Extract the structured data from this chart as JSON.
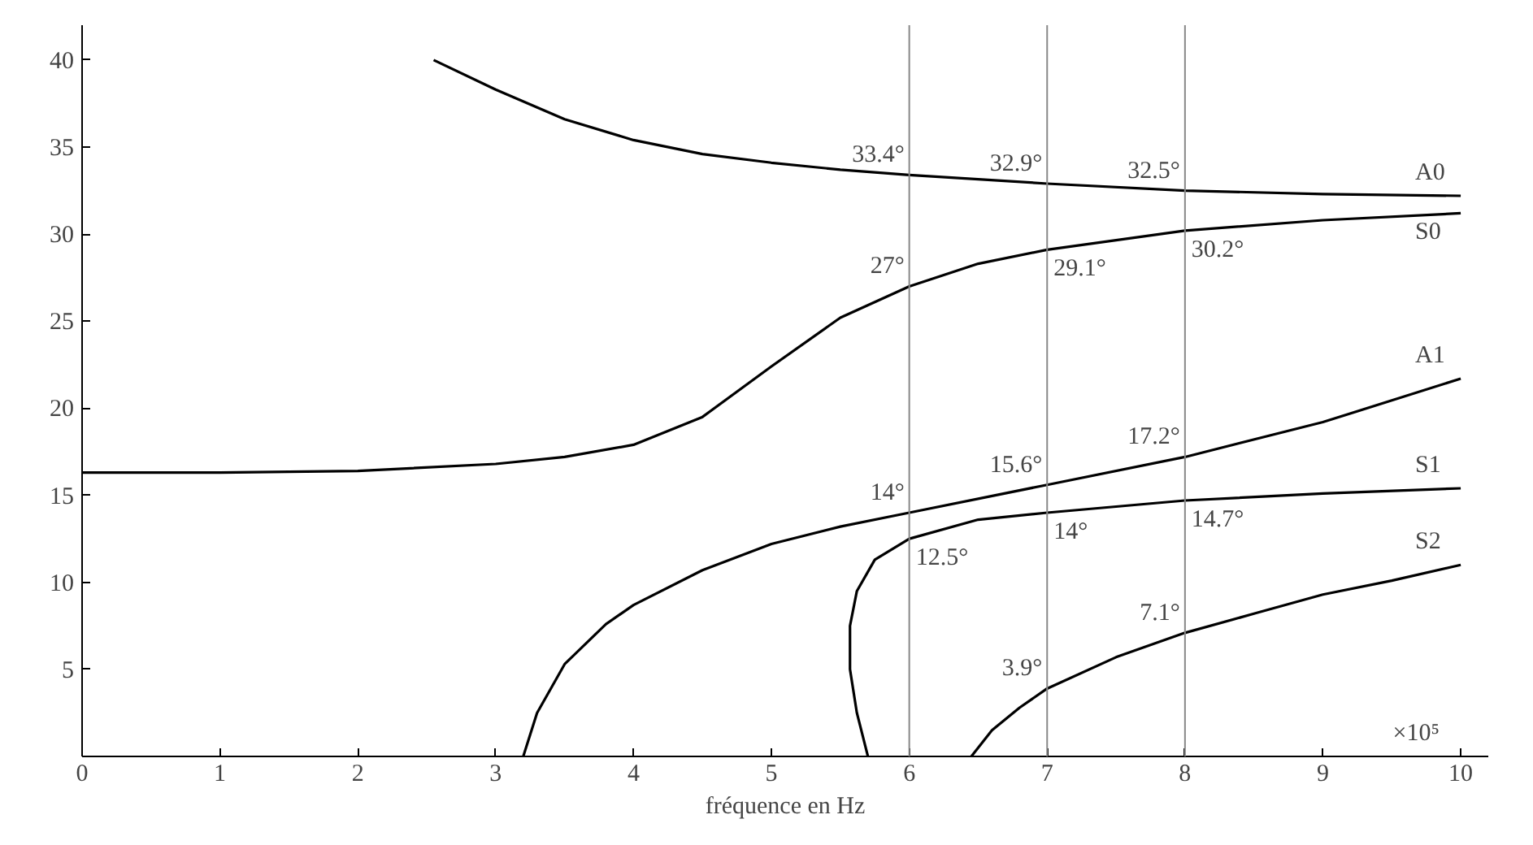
{
  "chart_data": {
    "type": "line",
    "xlabel": "fréquence en Hz",
    "xlim": [
      0,
      10.2
    ],
    "ylim": [
      0,
      42
    ],
    "xticks": [
      0,
      1,
      2,
      3,
      4,
      5,
      6,
      7,
      8,
      9,
      10
    ],
    "yticks": [
      5,
      10,
      15,
      20,
      25,
      30,
      35,
      40
    ],
    "grid": false,
    "marker": "none",
    "line_style": "solid",
    "series": [
      {
        "name": "A0",
        "color": "#000000",
        "x": [
          2.55,
          3,
          3.5,
          4,
          4.5,
          5,
          5.5,
          6,
          7,
          8,
          9,
          10
        ],
        "values": [
          40,
          38.3,
          36.6,
          35.4,
          34.6,
          34.1,
          33.7,
          33.4,
          32.9,
          32.5,
          32.3,
          32.2
        ]
      },
      {
        "name": "S0",
        "color": "#000000",
        "x": [
          0,
          1,
          2,
          3,
          3.5,
          4,
          4.5,
          5,
          5.5,
          6,
          6.5,
          7,
          8,
          9,
          10
        ],
        "values": [
          16.3,
          16.3,
          16.4,
          16.8,
          17.2,
          17.9,
          19.5,
          22.4,
          25.2,
          27,
          28.3,
          29.1,
          30.2,
          30.8,
          31.2
        ]
      },
      {
        "name": "A1",
        "color": "#000000",
        "x": [
          3.2,
          3.3,
          3.5,
          3.8,
          4,
          4.5,
          5,
          5.5,
          6,
          7,
          8,
          9,
          10
        ],
        "values": [
          0,
          2.5,
          5.3,
          7.6,
          8.7,
          10.7,
          12.2,
          13.2,
          14,
          15.6,
          17.2,
          19.2,
          21.7
        ]
      },
      {
        "name": "S1",
        "color": "#000000",
        "x": [
          5.7,
          5.62,
          5.57,
          5.57,
          5.62,
          5.75,
          6,
          6.5,
          7,
          8,
          9,
          10
        ],
        "values": [
          0,
          2.5,
          5,
          7.5,
          9.5,
          11.3,
          12.5,
          13.6,
          14,
          14.7,
          15.1,
          15.4
        ]
      },
      {
        "name": "S2",
        "color": "#000000",
        "x": [
          6.45,
          6.6,
          6.8,
          7,
          7.5,
          8,
          8.5,
          9,
          9.5,
          10
        ],
        "values": [
          0,
          1.5,
          2.8,
          3.9,
          5.7,
          7.1,
          8.2,
          9.3,
          10.1,
          11
        ]
      }
    ],
    "ref_lines": [
      {
        "axis": "x",
        "value": 6,
        "color": "#888888"
      },
      {
        "axis": "x",
        "value": 7,
        "color": "#888888"
      },
      {
        "axis": "x",
        "value": 8,
        "color": "#888888"
      }
    ],
    "annotations": [
      "×10⁵",
      {
        "text": "33.4°",
        "x": 6,
        "y": 33.4
      },
      {
        "text": "32.9°",
        "x": 7,
        "y": 32.9
      },
      {
        "text": "32.5°",
        "x": 8,
        "y": 32.5
      },
      {
        "text": "27°",
        "x": 6,
        "y": 27
      },
      {
        "text": "29.1°",
        "x": 7,
        "y": 29.1
      },
      {
        "text": "30.2°",
        "x": 8,
        "y": 30.2
      },
      {
        "text": "14°",
        "x": 6,
        "y": 14
      },
      {
        "text": "15.6°",
        "x": 7,
        "y": 15.6
      },
      {
        "text": "17.2°",
        "x": 8,
        "y": 17.2
      },
      {
        "text": "12.5°",
        "x": 6,
        "y": 12.5
      },
      {
        "text": "14°",
        "x": 7,
        "y": 14
      },
      {
        "text": "14.7°",
        "x": 8,
        "y": 14.7
      },
      {
        "text": "3.9°",
        "x": 7,
        "y": 3.9
      },
      {
        "text": "7.1°",
        "x": 8,
        "y": 7.1
      }
    ]
  }
}
